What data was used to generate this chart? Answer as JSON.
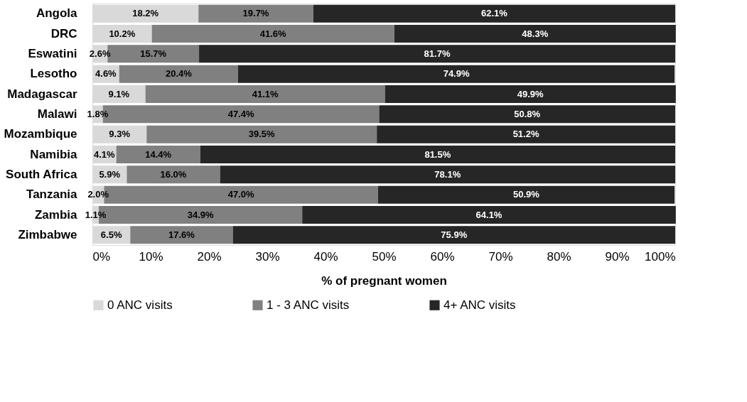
{
  "chart_data": {
    "type": "bar",
    "orientation": "horizontal",
    "stacked": true,
    "xlabel": "% of pregnant women",
    "categories": [
      "Angola",
      "DRC",
      "Eswatini",
      "Lesotho",
      "Madagascar",
      "Malawi",
      "Mozambique",
      "Namibia",
      "South Africa",
      "Tanzania",
      "Zambia",
      "Zimbabwe"
    ],
    "series": [
      {
        "name": "0 ANC visits",
        "color": "#d9d9d9",
        "values": [
          18.2,
          10.2,
          2.6,
          4.6,
          9.1,
          1.8,
          9.3,
          4.1,
          5.9,
          2.0,
          1.1,
          6.5
        ],
        "value_labels": [
          "18.2%",
          "10.2%",
          "2.6%",
          "4.6%",
          "9.1%",
          "1.8%",
          "9.3%",
          "4.1%",
          "5.9%",
          "2.0%",
          "1.1%",
          "6.5%"
        ]
      },
      {
        "name": "1 - 3 ANC visits",
        "color": "#808080",
        "values": [
          19.7,
          41.6,
          15.7,
          20.4,
          41.1,
          47.4,
          39.5,
          14.4,
          16.0,
          47.0,
          34.9,
          17.6
        ],
        "value_labels": [
          "19.7%",
          "41.6%",
          "15.7%",
          "20.4%",
          "41.1%",
          "47.4%",
          "39.5%",
          "14.4%",
          "16.0%",
          "47.0%",
          "34.9%",
          "17.6%"
        ]
      },
      {
        "name": "4+ ANC visits",
        "color": "#262626",
        "values": [
          62.1,
          48.3,
          81.7,
          74.9,
          49.9,
          50.8,
          51.2,
          81.5,
          78.1,
          50.9,
          64.1,
          75.9
        ],
        "value_labels": [
          "62.1%",
          "48.3%",
          "81.7%",
          "74.9%",
          "49.9%",
          "50.8%",
          "51.2%",
          "81.5%",
          "78.1%",
          "50.9%",
          "64.1%",
          "75.9%"
        ]
      }
    ],
    "xlim": [
      0,
      100
    ],
    "xticks": [
      {
        "value": 0,
        "label": "0%"
      },
      {
        "value": 10,
        "label": "10%"
      },
      {
        "value": 20,
        "label": "20%"
      },
      {
        "value": 30,
        "label": "30%"
      },
      {
        "value": 40,
        "label": "40%"
      },
      {
        "value": 50,
        "label": "50%"
      },
      {
        "value": 60,
        "label": "60%"
      },
      {
        "value": 70,
        "label": "70%"
      },
      {
        "value": 80,
        "label": "80%"
      },
      {
        "value": 90,
        "label": "90%"
      },
      {
        "value": 100,
        "label": "100%"
      }
    ],
    "grid": false,
    "legend": "bottom"
  }
}
